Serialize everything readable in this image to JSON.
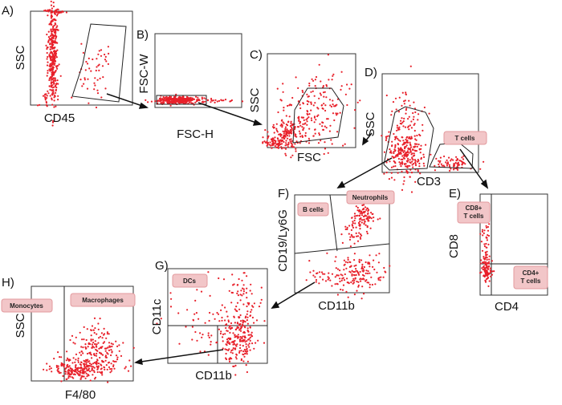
{
  "figure": {
    "colors": {
      "dot": "#e8202a",
      "gate_tag_fill": "#f2c6c8",
      "gate_tag_edge": "#e39a9e",
      "axis": "#333333"
    },
    "panels": [
      {
        "id": "A",
        "letter": "A)",
        "xlabel": "CD45",
        "ylabel": "SSC"
      },
      {
        "id": "B",
        "letter": "B)",
        "xlabel": "FSC-H",
        "ylabel": "FSC-W"
      },
      {
        "id": "C",
        "letter": "C)",
        "xlabel": "FSC",
        "ylabel": "SSC"
      },
      {
        "id": "D",
        "letter": "D)",
        "xlabel": "CD3",
        "ylabel": "SSC",
        "gates": [
          "T cells"
        ]
      },
      {
        "id": "E",
        "letter": "E)",
        "xlabel": "CD4",
        "ylabel": "CD8",
        "gates": [
          "CD8+\nT cells",
          "CD4+\nT cells"
        ]
      },
      {
        "id": "F",
        "letter": "F)",
        "xlabel": "CD11b",
        "ylabel": "CD19/Ly6G",
        "gates": [
          "B cells",
          "Neutrophils"
        ]
      },
      {
        "id": "G",
        "letter": "G)",
        "xlabel": "CD11b",
        "ylabel": "CD11c",
        "gates": [
          "DCs"
        ]
      },
      {
        "id": "H",
        "letter": "H)",
        "xlabel": "F4/80",
        "ylabel": "SSC",
        "gates": [
          "Monocytes",
          "Macrophages"
        ]
      }
    ]
  }
}
